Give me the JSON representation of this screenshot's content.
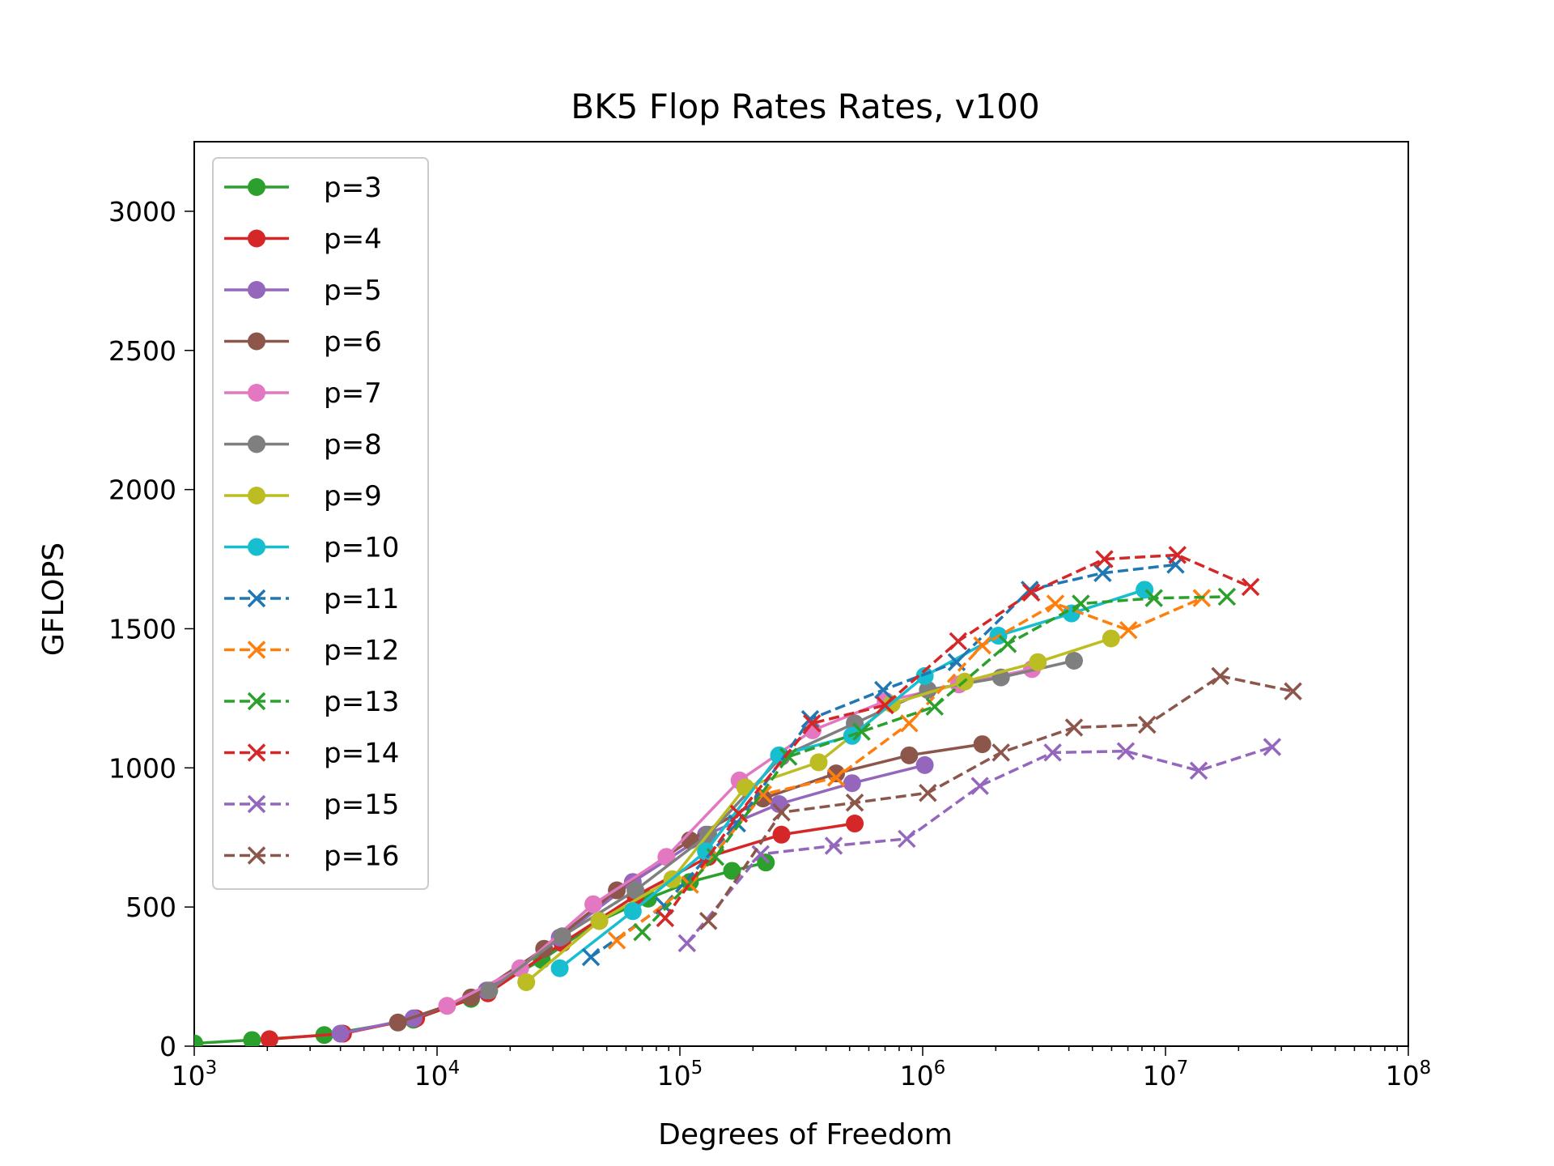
{
  "chart_data": {
    "type": "line",
    "title": "BK5 Flop Rates Rates, v100",
    "xlabel": "Degrees of Freedom",
    "ylabel": "GFLOPS",
    "xscale": "log",
    "xlim": [
      1000,
      100000000
    ],
    "ylim": [
      0,
      3250
    ],
    "x_ticks": [
      {
        "value": 1000,
        "base": "10",
        "exp": "3"
      },
      {
        "value": 10000,
        "base": "10",
        "exp": "4"
      },
      {
        "value": 100000,
        "base": "10",
        "exp": "5"
      },
      {
        "value": 1000000,
        "base": "10",
        "exp": "6"
      },
      {
        "value": 10000000,
        "base": "10",
        "exp": "7"
      },
      {
        "value": 100000000,
        "base": "10",
        "exp": "8"
      }
    ],
    "y_ticks": [
      {
        "value": 0,
        "label": "0"
      },
      {
        "value": 500,
        "label": "500"
      },
      {
        "value": 1000,
        "label": "1000"
      },
      {
        "value": 1500,
        "label": "1500"
      },
      {
        "value": 2000,
        "label": "2000"
      },
      {
        "value": 2500,
        "label": "2500"
      },
      {
        "value": 3000,
        "label": "3000"
      }
    ],
    "grid": false,
    "legend_position": "upper-left",
    "series": [
      {
        "name": "p=3",
        "color": "#2ca02c",
        "marker": "circle",
        "linestyle": "solid",
        "x": [
          1000,
          1730,
          3430,
          8000,
          13800,
          27000,
          46600,
          74000,
          110000,
          164000,
          226000
        ],
        "y": [
          10,
          22,
          40,
          95,
          170,
          310,
          450,
          530,
          590,
          630,
          660
        ]
      },
      {
        "name": "p=4",
        "color": "#d62728",
        "marker": "circle",
        "linestyle": "solid",
        "x": [
          2040,
          4100,
          8200,
          16200,
          32800,
          65600,
          131000,
          262000,
          525000
        ],
        "y": [
          25,
          45,
          100,
          190,
          370,
          540,
          680,
          760,
          800
        ]
      },
      {
        "name": "p=5",
        "color": "#9467bd",
        "marker": "circle",
        "linestyle": "solid",
        "x": [
          4000,
          8000,
          16000,
          32000,
          64000,
          128000,
          256000,
          512000,
          1020000
        ],
        "y": [
          45,
          100,
          200,
          390,
          590,
          760,
          870,
          945,
          1010
        ]
      },
      {
        "name": "p=6",
        "color": "#8c564b",
        "marker": "circle",
        "linestyle": "solid",
        "x": [
          6900,
          13800,
          27600,
          55000,
          110000,
          220000,
          440000,
          880000,
          1760000
        ],
        "y": [
          85,
          175,
          350,
          560,
          740,
          890,
          980,
          1045,
          1085
        ]
      },
      {
        "name": "p=7",
        "color": "#e377c2",
        "marker": "circle",
        "linestyle": "solid",
        "x": [
          11000,
          22000,
          44000,
          88000,
          176000,
          352000,
          704000,
          1410000,
          2820000
        ],
        "y": [
          145,
          280,
          510,
          680,
          955,
          1135,
          1240,
          1300,
          1355
        ]
      },
      {
        "name": "p=8",
        "color": "#7f7f7f",
        "marker": "circle",
        "linestyle": "solid",
        "x": [
          16400,
          32800,
          65600,
          131000,
          262000,
          525000,
          1050000,
          2100000,
          4200000
        ],
        "y": [
          200,
          395,
          560,
          760,
          1040,
          1160,
          1280,
          1325,
          1385
        ]
      },
      {
        "name": "p=9",
        "color": "#bcbd22",
        "marker": "circle",
        "linestyle": "solid",
        "x": [
          23300,
          46600,
          93000,
          186000,
          373000,
          746000,
          1490000,
          2980000,
          5970000
        ],
        "y": [
          230,
          450,
          600,
          930,
          1020,
          1230,
          1310,
          1380,
          1465
        ]
      },
      {
        "name": "p=10",
        "color": "#17becf",
        "marker": "circle",
        "linestyle": "solid",
        "x": [
          32000,
          64000,
          128000,
          256000,
          512000,
          1020000,
          2050000,
          4100000,
          8200000
        ],
        "y": [
          280,
          485,
          700,
          1045,
          1115,
          1330,
          1475,
          1555,
          1640
        ]
      },
      {
        "name": "p=11",
        "color": "#1f77b4",
        "marker": "x",
        "linestyle": "dashed",
        "x": [
          43000,
          86000,
          172000,
          344000,
          688000,
          1380000,
          2760000,
          5510000,
          11000000
        ],
        "y": [
          320,
          505,
          800,
          1175,
          1280,
          1380,
          1640,
          1700,
          1730
        ]
      },
      {
        "name": "p=12",
        "color": "#ff7f0e",
        "marker": "x",
        "linestyle": "dashed",
        "x": [
          55000,
          110000,
          220000,
          440000,
          880000,
          1760000,
          3520000,
          7040000,
          14100000
        ],
        "y": [
          380,
          580,
          905,
          965,
          1160,
          1440,
          1590,
          1495,
          1610
        ]
      },
      {
        "name": "p=13",
        "color": "#2ca02c",
        "marker": "x",
        "linestyle": "dashed",
        "x": [
          70000,
          140000,
          280000,
          560000,
          1120000,
          2240000,
          4480000,
          8960000,
          17900000
        ],
        "y": [
          410,
          680,
          1040,
          1130,
          1220,
          1445,
          1590,
          1610,
          1615
        ]
      },
      {
        "name": "p=14",
        "color": "#d62728",
        "marker": "x",
        "linestyle": "dashed",
        "x": [
          87000,
          175000,
          350000,
          700000,
          1400000,
          2800000,
          5600000,
          11200000,
          22400000
        ],
        "y": [
          460,
          835,
          1160,
          1225,
          1455,
          1630,
          1750,
          1765,
          1650
        ]
      },
      {
        "name": "p=15",
        "color": "#9467bd",
        "marker": "x",
        "linestyle": "dashed",
        "x": [
          107000,
          215000,
          430000,
          860000,
          1720000,
          3430000,
          6860000,
          13700000,
          27500000
        ],
        "y": [
          370,
          690,
          720,
          745,
          935,
          1055,
          1060,
          990,
          1075
        ]
      },
      {
        "name": "p=16",
        "color": "#8c564b",
        "marker": "x",
        "linestyle": "dashed",
        "x": [
          131000,
          262000,
          525000,
          1050000,
          2100000,
          4200000,
          8400000,
          16800000,
          33500000
        ],
        "y": [
          450,
          840,
          875,
          910,
          1055,
          1145,
          1155,
          1330,
          1275
        ]
      }
    ]
  }
}
